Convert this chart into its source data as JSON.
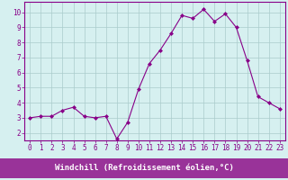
{
  "x": [
    0,
    1,
    2,
    3,
    4,
    5,
    6,
    7,
    8,
    9,
    10,
    11,
    12,
    13,
    14,
    15,
    16,
    17,
    18,
    19,
    20,
    21,
    22,
    23
  ],
  "y": [
    3.0,
    3.1,
    3.1,
    3.5,
    3.7,
    3.1,
    3.0,
    3.1,
    1.6,
    2.7,
    4.9,
    6.6,
    7.5,
    8.6,
    9.8,
    9.6,
    10.2,
    9.4,
    9.9,
    9.0,
    6.8,
    4.4,
    4.0,
    3.6
  ],
  "line_color": "#880088",
  "marker": "D",
  "marker_size": 2.0,
  "bg_color": "#d6f0f0",
  "grid_color": "#aacccc",
  "xlabel": "Windchill (Refroidissement éolien,°C)",
  "xlabel_bg": "#993399",
  "xlabel_color": "#ffffff",
  "tick_color": "#880088",
  "xlim": [
    -0.5,
    23.5
  ],
  "ylim": [
    1.5,
    10.7
  ],
  "yticks": [
    2,
    3,
    4,
    5,
    6,
    7,
    8,
    9,
    10
  ],
  "xticks": [
    0,
    1,
    2,
    3,
    4,
    5,
    6,
    7,
    8,
    9,
    10,
    11,
    12,
    13,
    14,
    15,
    16,
    17,
    18,
    19,
    20,
    21,
    22,
    23
  ],
  "tick_label_fontsize": 5.5,
  "xlabel_fontsize": 6.5,
  "line_width": 0.8
}
